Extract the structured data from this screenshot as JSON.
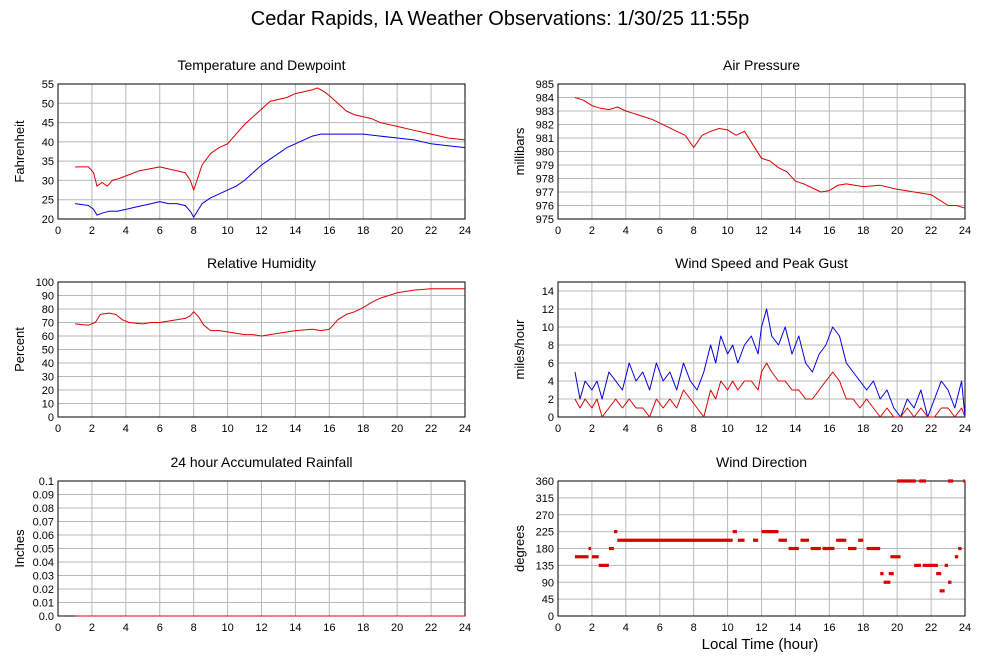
{
  "page": {
    "title": "Cedar Rapids, IA Weather Observations: 1/30/25 11:55p",
    "xlabel": "Local Time (hour)"
  },
  "colors": {
    "red": "#dd0000",
    "blue": "#0000dd",
    "grid": "#b8b8b8"
  },
  "chart_data": [
    {
      "id": "temp",
      "type": "line",
      "title": "Temperature and Dewpoint",
      "xlabel": "",
      "ylabel": "Fahrenheit",
      "xlim": [
        0,
        24
      ],
      "ylim": [
        20,
        55
      ],
      "xticks": [
        2,
        4,
        6,
        8,
        10,
        12,
        14,
        16,
        18,
        20,
        22,
        24
      ],
      "yticks": [
        20,
        25,
        30,
        35,
        40,
        45,
        50,
        55
      ],
      "grid": true,
      "series": [
        {
          "color": "#dd0000",
          "x": [
            1,
            1.8,
            2.1,
            2.3,
            2.6,
            2.9,
            3.2,
            3.6,
            4.2,
            4.8,
            5.4,
            6.0,
            6.5,
            7.0,
            7.5,
            7.8,
            8.0,
            8.5,
            9.0,
            9.5,
            10.0,
            10.5,
            11.0,
            11.5,
            12.0,
            12.5,
            13.0,
            13.5,
            14.0,
            14.5,
            15.0,
            15.3,
            15.7,
            16.0,
            16.5,
            17.0,
            17.5,
            18.0,
            18.5,
            19.0,
            20.0,
            21.0,
            22.0,
            23.0,
            24.0
          ],
          "y": [
            33.5,
            33.5,
            32,
            28.5,
            29.5,
            28.5,
            30,
            30.5,
            31.5,
            32.5,
            33,
            33.5,
            33,
            32.5,
            32,
            30,
            27.5,
            34,
            37,
            38.5,
            39.5,
            42,
            44.5,
            46.5,
            48.5,
            50.5,
            51,
            51.5,
            52.5,
            53,
            53.5,
            54,
            53,
            52,
            50,
            48,
            47,
            46.5,
            46,
            45,
            44,
            43,
            42,
            41,
            40.5
          ]
        },
        {
          "color": "#0000dd",
          "x": [
            1,
            1.8,
            2.1,
            2.3,
            2.6,
            3.0,
            3.5,
            4.0,
            4.5,
            5.0,
            5.5,
            6.0,
            6.5,
            7.0,
            7.5,
            7.8,
            8.0,
            8.5,
            9.0,
            9.5,
            10.0,
            10.5,
            11.0,
            11.5,
            12.0,
            12.5,
            13.0,
            13.5,
            14.0,
            14.5,
            15.0,
            15.5,
            16.0,
            17.0,
            18.0,
            19.0,
            20.0,
            21.0,
            22.0,
            23.0,
            24.0
          ],
          "y": [
            24,
            23.5,
            22.5,
            21,
            21.5,
            22,
            22,
            22.5,
            23,
            23.5,
            24,
            24.5,
            24,
            24,
            23.5,
            22,
            20.5,
            24,
            25.5,
            26.5,
            27.5,
            28.5,
            30,
            32,
            34,
            35.5,
            37,
            38.5,
            39.5,
            40.5,
            41.5,
            42,
            42,
            42,
            42,
            41.5,
            41,
            40.5,
            39.5,
            39,
            38.5
          ]
        }
      ]
    },
    {
      "id": "pressure",
      "type": "line",
      "title": "Air Pressure",
      "xlabel": "",
      "ylabel": "millibars",
      "xlim": [
        0,
        24
      ],
      "ylim": [
        975,
        985
      ],
      "xticks": [
        2,
        4,
        6,
        8,
        10,
        12,
        14,
        16,
        18,
        20,
        22,
        24
      ],
      "yticks": [
        975,
        976,
        977,
        978,
        979,
        980,
        981,
        982,
        983,
        984,
        985
      ],
      "grid": true,
      "series": [
        {
          "color": "#dd0000",
          "x": [
            1,
            1.5,
            2,
            2.5,
            3,
            3.5,
            4,
            4.5,
            5,
            5.5,
            6,
            6.5,
            7,
            7.5,
            8,
            8.5,
            9,
            9.5,
            10,
            10.5,
            11,
            11.5,
            12,
            12.5,
            13,
            13.5,
            14,
            14.5,
            15,
            15.5,
            16,
            16.5,
            17,
            18,
            19,
            20,
            21,
            22,
            22.5,
            23,
            23.5,
            24
          ],
          "y": [
            984,
            983.8,
            983.4,
            983.2,
            983.1,
            983.3,
            983,
            982.8,
            982.6,
            982.4,
            982.1,
            981.8,
            981.5,
            981.2,
            980.3,
            981.2,
            981.5,
            981.7,
            981.6,
            981.2,
            981.5,
            980.5,
            979.5,
            979.3,
            978.8,
            978.5,
            977.8,
            977.6,
            977.3,
            977,
            977.1,
            977.5,
            977.6,
            977.4,
            977.5,
            977.2,
            977,
            976.8,
            976.4,
            976,
            976,
            975.8
          ]
        }
      ]
    },
    {
      "id": "humidity",
      "type": "line",
      "title": "Relative Humidity",
      "xlabel": "",
      "ylabel": "Percent",
      "xlim": [
        0,
        24
      ],
      "ylim": [
        0,
        100
      ],
      "xticks": [
        2,
        4,
        6,
        8,
        10,
        12,
        14,
        16,
        18,
        20,
        22,
        24
      ],
      "yticks": [
        0,
        10,
        20,
        30,
        40,
        50,
        60,
        70,
        80,
        90,
        100
      ],
      "grid": true,
      "series": [
        {
          "color": "#dd0000",
          "x": [
            1,
            1.8,
            2.2,
            2.5,
            3.0,
            3.4,
            3.8,
            4.2,
            5.0,
            5.5,
            6.0,
            6.5,
            7.0,
            7.5,
            7.8,
            8.0,
            8.3,
            8.6,
            9.0,
            9.5,
            10.0,
            10.5,
            11.0,
            11.5,
            12.0,
            12.5,
            13.0,
            14.0,
            15.0,
            15.5,
            16.0,
            16.5,
            17.0,
            17.5,
            18.0,
            18.5,
            19.0,
            19.5,
            20.0,
            21.0,
            22.0,
            23.0,
            24.0
          ],
          "y": [
            69,
            68,
            70,
            76,
            77,
            76,
            72,
            70,
            69,
            70,
            70,
            71,
            72,
            73,
            75,
            78,
            74,
            68,
            64,
            64,
            63,
            62,
            61,
            61,
            60,
            61,
            62,
            64,
            65,
            64,
            65,
            72,
            76,
            78,
            81,
            85,
            88,
            90,
            92,
            94,
            95,
            95,
            95
          ]
        }
      ]
    },
    {
      "id": "wind",
      "type": "line",
      "title": "Wind Speed and Peak Gust",
      "xlabel": "",
      "ylabel": "miles/hour",
      "xlim": [
        0,
        24
      ],
      "ylim": [
        0,
        15
      ],
      "xticks": [
        2,
        4,
        6,
        8,
        10,
        12,
        14,
        16,
        18,
        20,
        22,
        24
      ],
      "yticks": [
        0,
        2,
        4,
        6,
        8,
        10,
        12,
        14
      ],
      "grid": true,
      "series": [
        {
          "color": "#0000dd",
          "x": [
            1,
            1.3,
            1.6,
            2.0,
            2.3,
            2.6,
            3.0,
            3.4,
            3.8,
            4.2,
            4.6,
            5.0,
            5.4,
            5.8,
            6.2,
            6.6,
            7.0,
            7.4,
            7.8,
            8.2,
            8.6,
            9.0,
            9.3,
            9.6,
            10.0,
            10.3,
            10.6,
            11.0,
            11.4,
            11.8,
            12.0,
            12.3,
            12.6,
            13.0,
            13.4,
            13.8,
            14.2,
            14.6,
            15.0,
            15.4,
            15.8,
            16.2,
            16.6,
            17.0,
            17.4,
            17.8,
            18.2,
            18.6,
            19.0,
            19.4,
            19.8,
            20.2,
            20.6,
            21.0,
            21.4,
            21.8,
            22.2,
            22.6,
            23.0,
            23.4,
            23.8,
            24.0
          ],
          "y": [
            5,
            2,
            4,
            3,
            4,
            2,
            5,
            4,
            3,
            6,
            4,
            5,
            3,
            6,
            4,
            5,
            3,
            6,
            4,
            3,
            5,
            8,
            6,
            9,
            7,
            8,
            6,
            8,
            9,
            7,
            10,
            12,
            9,
            8,
            10,
            7,
            9,
            6,
            5,
            7,
            8,
            10,
            9,
            6,
            5,
            4,
            3,
            4,
            2,
            3,
            1,
            0,
            2,
            1,
            3,
            0,
            2,
            4,
            3,
            1,
            4,
            0
          ]
        },
        {
          "color": "#dd0000",
          "x": [
            1,
            1.3,
            1.6,
            2.0,
            2.3,
            2.6,
            3.0,
            3.4,
            3.8,
            4.2,
            4.6,
            5.0,
            5.4,
            5.8,
            6.2,
            6.6,
            7.0,
            7.4,
            7.8,
            8.2,
            8.6,
            9.0,
            9.3,
            9.6,
            10.0,
            10.3,
            10.6,
            11.0,
            11.4,
            11.8,
            12.0,
            12.3,
            12.6,
            13.0,
            13.4,
            13.8,
            14.2,
            14.6,
            15.0,
            15.4,
            15.8,
            16.2,
            16.6,
            17.0,
            17.4,
            17.8,
            18.2,
            18.6,
            19.0,
            19.4,
            19.8,
            20.2,
            20.6,
            21.0,
            21.4,
            21.8,
            22.2,
            22.6,
            23.0,
            23.4,
            23.8,
            24.0
          ],
          "y": [
            2,
            1,
            2,
            1,
            2,
            0,
            1,
            2,
            1,
            2,
            1,
            1,
            0,
            2,
            1,
            2,
            1,
            3,
            2,
            1,
            0,
            3,
            2,
            4,
            3,
            4,
            3,
            4,
            4,
            3,
            5,
            6,
            5,
            4,
            4,
            3,
            3,
            2,
            2,
            3,
            4,
            5,
            4,
            2,
            2,
            1,
            2,
            1,
            0,
            1,
            0,
            0,
            1,
            0,
            1,
            0,
            0,
            1,
            1,
            0,
            1,
            0
          ]
        }
      ]
    },
    {
      "id": "rain",
      "type": "line",
      "title": "24 hour Accumulated Rainfall",
      "xlabel": "",
      "ylabel": "Inches",
      "xlim": [
        0,
        24
      ],
      "ylim": [
        0,
        0.1
      ],
      "xticks": [
        2,
        4,
        6,
        8,
        10,
        12,
        14,
        16,
        18,
        20,
        22,
        24
      ],
      "yticks": [
        0.0,
        0.01,
        0.02,
        0.03,
        0.04,
        0.05,
        0.06,
        0.07,
        0.08,
        0.09,
        0.1
      ],
      "ytick_labels": [
        "0.0",
        "0.01",
        "0.02",
        "0.03",
        "0.04",
        "0.05",
        "0.06",
        "0.07",
        "0.08",
        "0.09",
        "0.1"
      ],
      "grid": true,
      "series": [
        {
          "color": "#dd0000",
          "x": [
            1,
            24
          ],
          "y": [
            0,
            0
          ]
        }
      ]
    },
    {
      "id": "direction",
      "type": "scatter",
      "title": "Wind Direction",
      "xlabel": "Local Time (hour)",
      "ylabel": "degrees",
      "xlim": [
        0,
        24
      ],
      "ylim": [
        0,
        360
      ],
      "xticks": [
        2,
        4,
        6,
        8,
        10,
        12,
        14,
        16,
        18,
        20,
        22,
        24
      ],
      "yticks": [
        0,
        45,
        90,
        135,
        180,
        225,
        270,
        315,
        360
      ],
      "grid": true,
      "series": [
        {
          "color": "#dd0000",
          "segments": [
            [
              1.0,
              1.8,
              158
            ],
            [
              1.8,
              1.95,
              180
            ],
            [
              2.0,
              2.4,
              158
            ],
            [
              2.4,
              3.0,
              135
            ],
            [
              3.0,
              3.3,
              180
            ],
            [
              3.3,
              3.5,
              225
            ],
            [
              3.5,
              10.3,
              202
            ],
            [
              10.3,
              10.55,
              225
            ],
            [
              10.6,
              11.0,
              202
            ],
            [
              11.5,
              11.8,
              202
            ],
            [
              12.0,
              13.0,
              225
            ],
            [
              13.0,
              13.5,
              202
            ],
            [
              13.6,
              14.2,
              180
            ],
            [
              14.3,
              14.8,
              202
            ],
            [
              14.9,
              15.5,
              180
            ],
            [
              15.6,
              16.3,
              180
            ],
            [
              16.4,
              17.0,
              202
            ],
            [
              17.1,
              17.6,
              180
            ],
            [
              17.7,
              18.0,
              202
            ],
            [
              18.2,
              19.0,
              180
            ],
            [
              19.0,
              19.2,
              113
            ],
            [
              19.2,
              19.6,
              90
            ],
            [
              19.5,
              19.8,
              113
            ],
            [
              19.6,
              20.2,
              158
            ],
            [
              20.0,
              21.1,
              360
            ],
            [
              21.3,
              21.7,
              360
            ],
            [
              21.0,
              21.4,
              135
            ],
            [
              21.5,
              22.4,
              135
            ],
            [
              22.3,
              22.6,
              113
            ],
            [
              22.5,
              22.8,
              67
            ],
            [
              22.8,
              23.0,
              135
            ],
            [
              23.0,
              23.2,
              90
            ],
            [
              23.4,
              23.6,
              158
            ],
            [
              23.6,
              23.8,
              180
            ],
            [
              23.0,
              23.3,
              360
            ],
            [
              23.9,
              24.0,
              360
            ]
          ]
        }
      ]
    }
  ]
}
